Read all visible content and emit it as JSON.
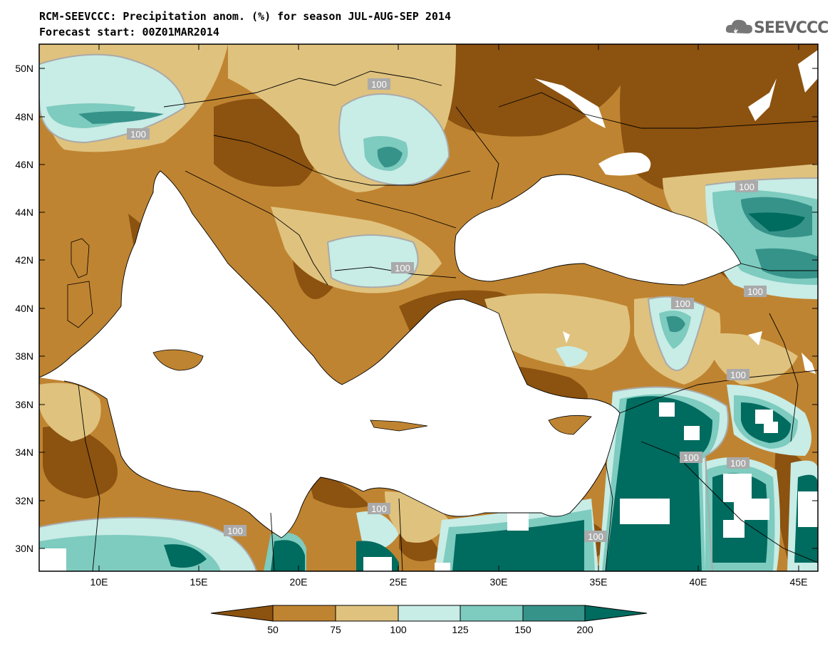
{
  "header": {
    "title_line1": "RCM-SEEVCCC: Precipitation anom. (%) for season JUL-AUG-SEP 2014",
    "title_line2": "Forecast start: 00Z01MAR2014"
  },
  "logo": {
    "text": "SEEVCCC",
    "icon": "cloud-icon"
  },
  "map": {
    "lat_labels": [
      "50N",
      "48N",
      "46N",
      "44N",
      "42N",
      "40N",
      "38N",
      "36N",
      "34N",
      "32N",
      "30N"
    ],
    "lon_labels": [
      "10E",
      "15E",
      "20E",
      "25E",
      "30E",
      "35E",
      "40E",
      "45E"
    ],
    "contour_labels": [
      "100",
      "100",
      "100",
      "100",
      "100",
      "100",
      "100",
      "100",
      "100",
      "100",
      "100",
      "100"
    ]
  },
  "colorbar": {
    "labels": [
      "50",
      "75",
      "100",
      "125",
      "150",
      "200"
    ],
    "colors": [
      "#8c5210",
      "#bf8431",
      "#dfc27e",
      "#c8ece6",
      "#7ecbbf",
      "#36938a",
      "#006b5f"
    ]
  }
}
